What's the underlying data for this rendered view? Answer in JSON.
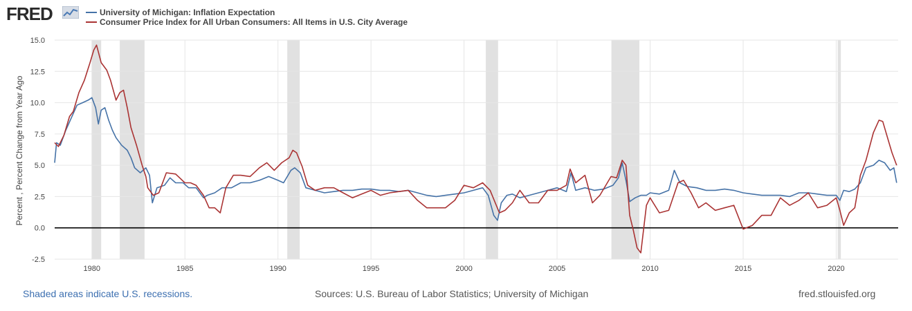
{
  "header": {
    "logo_text": "FRED",
    "logo_mark": "fred-graph-icon"
  },
  "chart_data": {
    "type": "line",
    "xlim": [
      1978.0,
      2023.33
    ],
    "ylim": [
      -2.5,
      15.0
    ],
    "ylabel": "Percent , Percent Change from Year Ago",
    "y_ticks": [
      "15.0",
      "12.5",
      "10.0",
      "7.5",
      "5.0",
      "2.5",
      "0.0",
      "-2.5"
    ],
    "y_tick_values": [
      15.0,
      12.5,
      10.0,
      7.5,
      5.0,
      2.5,
      0.0,
      -2.5
    ],
    "x_ticks": [
      "1980",
      "1985",
      "1990",
      "1995",
      "2000",
      "2005",
      "2010",
      "2015",
      "2020"
    ],
    "x_tick_values": [
      1980,
      1985,
      1990,
      1995,
      2000,
      2005,
      2010,
      2015,
      2020
    ],
    "grid": true,
    "zero_line": true,
    "legend_position": "top-left",
    "recessions": [
      [
        1980.0,
        1980.5
      ],
      [
        1981.5,
        1982.83
      ],
      [
        1990.5,
        1991.17
      ],
      [
        2001.17,
        2001.83
      ],
      [
        2007.92,
        2009.42
      ],
      [
        2020.08,
        2020.25
      ]
    ],
    "series": [
      {
        "name": "University of Michigan: Inflation Expectation",
        "color": "#4572a7",
        "x": [
          1978.0,
          1978.1,
          1978.3,
          1978.6,
          1978.9,
          1979.2,
          1979.5,
          1979.8,
          1980.0,
          1980.2,
          1980.35,
          1980.5,
          1980.7,
          1980.9,
          1981.1,
          1981.3,
          1981.6,
          1981.9,
          1982.1,
          1982.3,
          1982.6,
          1982.9,
          1983.1,
          1983.25,
          1983.5,
          1983.9,
          1984.2,
          1984.5,
          1984.9,
          1985.2,
          1985.6,
          1986.0,
          1986.2,
          1986.6,
          1987.0,
          1987.5,
          1988.0,
          1988.5,
          1989.0,
          1989.5,
          1990.0,
          1990.3,
          1990.7,
          1990.9,
          1991.2,
          1991.5,
          1992.0,
          1992.5,
          1993.0,
          1993.5,
          1994.0,
          1994.5,
          1995.0,
          1995.5,
          1996.0,
          1996.5,
          1997.0,
          1997.5,
          1998.0,
          1998.5,
          1999.0,
          1999.5,
          2000.0,
          2000.5,
          2001.0,
          2001.3,
          2001.6,
          2001.8,
          2002.0,
          2002.3,
          2002.6,
          2003.0,
          2003.5,
          2004.0,
          2004.5,
          2005.0,
          2005.5,
          2005.75,
          2006.0,
          2006.5,
          2007.0,
          2007.5,
          2008.0,
          2008.3,
          2008.5,
          2008.7,
          2008.9,
          2009.0,
          2009.2,
          2009.5,
          2009.8,
          2010.0,
          2010.5,
          2011.0,
          2011.3,
          2011.6,
          2012.0,
          2012.5,
          2013.0,
          2013.5,
          2014.0,
          2014.5,
          2015.0,
          2015.5,
          2016.0,
          2016.5,
          2017.0,
          2017.5,
          2018.0,
          2018.5,
          2019.0,
          2019.5,
          2020.0,
          2020.2,
          2020.4,
          2020.7,
          2021.0,
          2021.3,
          2021.6,
          2022.0,
          2022.3,
          2022.6,
          2022.9,
          2023.1,
          2023.25
        ],
        "values": [
          5.2,
          6.8,
          6.6,
          7.8,
          8.8,
          9.8,
          10.0,
          10.2,
          10.4,
          9.6,
          8.3,
          9.4,
          9.6,
          8.6,
          7.8,
          7.2,
          6.6,
          6.2,
          5.6,
          4.8,
          4.4,
          4.8,
          4.2,
          2.0,
          3.2,
          3.4,
          4.0,
          3.6,
          3.6,
          3.2,
          3.2,
          2.4,
          2.6,
          2.8,
          3.2,
          3.2,
          3.6,
          3.6,
          3.8,
          4.1,
          3.8,
          3.6,
          4.6,
          4.8,
          4.4,
          3.2,
          3.0,
          2.8,
          2.9,
          3.0,
          3.0,
          3.1,
          3.1,
          3.0,
          3.0,
          2.9,
          3.0,
          2.8,
          2.6,
          2.5,
          2.6,
          2.7,
          2.8,
          3.0,
          3.2,
          2.6,
          1.0,
          0.6,
          2.0,
          2.6,
          2.7,
          2.4,
          2.6,
          2.8,
          3.0,
          3.2,
          2.9,
          4.4,
          3.0,
          3.2,
          3.0,
          3.1,
          3.4,
          4.0,
          5.2,
          3.8,
          2.1,
          2.2,
          2.4,
          2.6,
          2.6,
          2.8,
          2.7,
          3.0,
          4.6,
          3.6,
          3.3,
          3.2,
          3.0,
          3.0,
          3.1,
          3.0,
          2.8,
          2.7,
          2.6,
          2.6,
          2.6,
          2.5,
          2.8,
          2.8,
          2.7,
          2.6,
          2.6,
          2.2,
          3.0,
          2.9,
          3.1,
          3.6,
          4.8,
          5.0,
          5.4,
          5.2,
          4.6,
          4.8,
          3.6
        ]
      },
      {
        "name": "Consumer Price Index for All Urban Consumers: All Items in U.S. City Average",
        "color": "#aa3333",
        "x": [
          1978.0,
          1978.2,
          1978.5,
          1978.8,
          1979.0,
          1979.3,
          1979.6,
          1979.9,
          1980.1,
          1980.25,
          1980.5,
          1980.8,
          1981.0,
          1981.3,
          1981.5,
          1981.7,
          1981.9,
          1982.1,
          1982.4,
          1982.7,
          1982.9,
          1983.0,
          1983.3,
          1983.6,
          1984.0,
          1984.5,
          1985.0,
          1985.3,
          1985.6,
          1986.0,
          1986.3,
          1986.6,
          1986.9,
          1987.2,
          1987.6,
          1988.0,
          1988.5,
          1989.0,
          1989.4,
          1989.8,
          1990.2,
          1990.6,
          1990.8,
          1991.0,
          1991.3,
          1991.6,
          1992.0,
          1992.5,
          1993.0,
          1993.5,
          1994.0,
          1994.5,
          1995.0,
          1995.5,
          1996.0,
          1996.5,
          1997.0,
          1997.5,
          1998.0,
          1998.5,
          1999.0,
          1999.5,
          2000.0,
          2000.5,
          2001.0,
          2001.4,
          2001.9,
          2002.2,
          2002.6,
          2003.0,
          2003.5,
          2004.0,
          2004.5,
          2005.0,
          2005.5,
          2005.7,
          2006.0,
          2006.5,
          2006.9,
          2007.3,
          2007.9,
          2008.2,
          2008.5,
          2008.7,
          2008.9,
          2009.1,
          2009.3,
          2009.5,
          2009.8,
          2010.0,
          2010.5,
          2011.0,
          2011.5,
          2011.8,
          2012.2,
          2012.6,
          2013.0,
          2013.5,
          2014.0,
          2014.5,
          2015.0,
          2015.5,
          2016.0,
          2016.5,
          2017.0,
          2017.5,
          2018.0,
          2018.5,
          2019.0,
          2019.5,
          2020.0,
          2020.2,
          2020.4,
          2020.7,
          2021.0,
          2021.3,
          2021.6,
          2022.0,
          2022.3,
          2022.5,
          2022.8,
          2023.0,
          2023.25
        ],
        "values": [
          6.8,
          6.5,
          7.4,
          8.9,
          9.3,
          10.8,
          11.8,
          13.2,
          14.2,
          14.6,
          13.2,
          12.6,
          11.8,
          10.2,
          10.8,
          11.0,
          9.6,
          8.0,
          6.6,
          5.0,
          4.1,
          3.2,
          2.6,
          2.8,
          4.4,
          4.3,
          3.6,
          3.6,
          3.4,
          2.6,
          1.6,
          1.6,
          1.2,
          3.2,
          4.2,
          4.2,
          4.1,
          4.8,
          5.2,
          4.6,
          5.2,
          5.6,
          6.2,
          6.0,
          4.9,
          3.4,
          3.0,
          3.2,
          3.2,
          2.8,
          2.4,
          2.7,
          3.0,
          2.6,
          2.8,
          2.9,
          3.0,
          2.2,
          1.6,
          1.6,
          1.6,
          2.2,
          3.4,
          3.2,
          3.6,
          3.0,
          1.2,
          1.4,
          2.0,
          3.0,
          2.0,
          2.0,
          3.0,
          3.0,
          3.4,
          4.7,
          3.6,
          4.2,
          2.0,
          2.6,
          4.1,
          4.0,
          5.4,
          5.0,
          1.0,
          -0.2,
          -1.6,
          -2.0,
          1.8,
          2.4,
          1.2,
          1.4,
          3.6,
          3.8,
          2.8,
          1.6,
          2.0,
          1.4,
          1.6,
          1.8,
          -0.1,
          0.2,
          1.0,
          1.0,
          2.4,
          1.8,
          2.2,
          2.8,
          1.6,
          1.8,
          2.4,
          1.4,
          0.2,
          1.2,
          1.6,
          4.2,
          5.4,
          7.6,
          8.6,
          8.5,
          7.0,
          6.0,
          5.0
        ]
      }
    ]
  },
  "footer": {
    "left": "Shaded areas indicate U.S. recessions.",
    "middle": "Sources: U.S. Bureau of Labor Statistics; University of Michigan",
    "right": "fred.stlouisfed.org"
  }
}
